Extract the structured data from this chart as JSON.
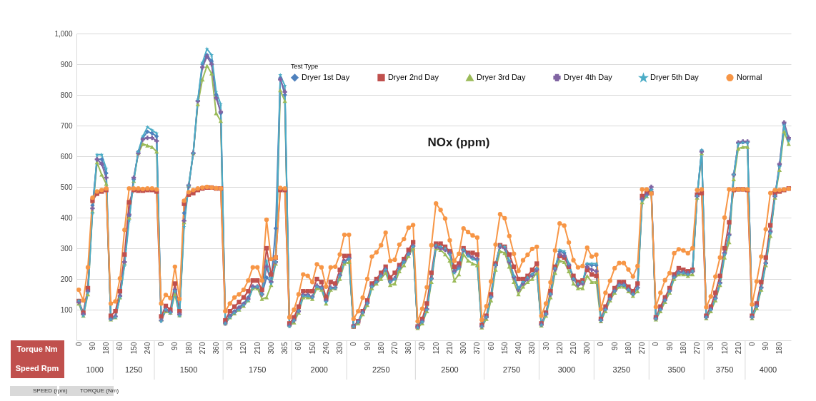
{
  "chart_data": {
    "type": "line",
    "title": "NOx (ppm)",
    "legend_title": "Test Type",
    "legend": "top",
    "grid": "y",
    "ylim": [
      0,
      1000
    ],
    "yticks": [
      100,
      200,
      300,
      400,
      500,
      600,
      700,
      800,
      900,
      {
        "value": 1000,
        "label": "1,000"
      }
    ],
    "categories": [
      "0",
      null,
      null,
      "90",
      null,
      null,
      "180",
      null,
      null,
      "60",
      null,
      null,
      "150",
      null,
      null,
      "240",
      null,
      null,
      "0",
      null,
      null,
      "90",
      null,
      null,
      "180",
      null,
      null,
      "270",
      null,
      null,
      "360",
      null,
      null,
      "30",
      null,
      null,
      "120",
      null,
      null,
      "210",
      null,
      null,
      "300",
      null,
      null,
      "365",
      null,
      null,
      "60",
      null,
      null,
      "150",
      null,
      null,
      "240",
      null,
      null,
      "330",
      null,
      null,
      "0",
      null,
      null,
      "90",
      null,
      null,
      "180",
      null,
      null,
      "270",
      null,
      null,
      "360",
      null,
      null,
      "30",
      null,
      null,
      "120",
      null,
      null,
      "210",
      null,
      null,
      "300",
      null,
      null,
      "370",
      null,
      null,
      "60",
      null,
      null,
      "150",
      null,
      null,
      "240",
      null,
      null,
      "330",
      null,
      null,
      "30",
      null,
      null,
      "120",
      null,
      null,
      "210",
      null,
      null,
      "300",
      null,
      null,
      "0",
      null,
      null,
      "90",
      null,
      null,
      "180",
      null,
      null,
      "270",
      null,
      null,
      "0",
      null,
      null,
      "90",
      null,
      null,
      "180",
      null,
      null,
      "270",
      null,
      null,
      "30",
      null,
      null,
      "120",
      null,
      null,
      "210",
      null,
      null,
      "0",
      null,
      null,
      "90",
      null,
      null,
      "180",
      null,
      null
    ],
    "series": [
      {
        "name": "Dryer 1st Day",
        "color": "#4f81bd",
        "marker": "diamond",
        "values": [
          125,
          88,
          165,
          440,
          590,
          590,
          545,
          70,
          78,
          145,
          255,
          405,
          525,
          615,
          660,
          680,
          675,
          665,
          65,
          100,
          90,
          160,
          82,
          415,
          500,
          610,
          780,
          900,
          930,
          910,
          800,
          740,
          58,
          80,
          95,
          108,
          120,
          140,
          175,
          175,
          150,
          205,
          190,
          365,
          855,
          800,
          48,
          66,
          96,
          146,
          146,
          141,
          176,
          171,
          128,
          171,
          171,
          211,
          256,
          266,
          46,
          61,
          91,
          121,
          176,
          191,
          211,
          231,
          191,
          201,
          236,
          256,
          281,
          306,
          43,
          61,
          101,
          201,
          308,
          303,
          298,
          282,
          222,
          237,
          296,
          277,
          267,
          262,
          46,
          76,
          141,
          246,
          308,
          303,
          258,
          208,
          168,
          188,
          203,
          214,
          233,
          51,
          86,
          151,
          236,
          290,
          285,
          248,
          200,
          183,
          188,
          248,
          245,
          245,
          66,
          101,
          136,
          161,
          181,
          181,
          166,
          151,
          171,
          460,
          475,
          492,
          71,
          101,
          131,
          161,
          206,
          221,
          221,
          216,
          224,
          472,
          618,
          76,
          101,
          136,
          186,
          282,
          342,
          540,
          642,
          646,
          646,
          76,
          111,
          171,
          251,
          352,
          470,
          570,
          705,
          655
        ]
      },
      {
        "name": "Dryer 2nd Day",
        "color": "#c0504d",
        "marker": "square",
        "values": [
          128,
          90,
          170,
          455,
          478,
          485,
          490,
          80,
          95,
          160,
          280,
          450,
          490,
          488,
          488,
          490,
          490,
          485,
          78,
          112,
          100,
          185,
          95,
          445,
          475,
          480,
          490,
          495,
          498,
          498,
          495,
          495,
          65,
          95,
          110,
          125,
          140,
          160,
          195,
          195,
          165,
          300,
          215,
          270,
          490,
          490,
          55,
          75,
          110,
          160,
          160,
          160,
          200,
          190,
          140,
          190,
          185,
          230,
          275,
          275,
          45,
          62,
          95,
          130,
          185,
          200,
          220,
          240,
          205,
          220,
          245,
          265,
          295,
          320,
          45,
          70,
          120,
          220,
          315,
          315,
          305,
          290,
          240,
          250,
          300,
          285,
          285,
          280,
          50,
          80,
          150,
          250,
          310,
          305,
          280,
          240,
          200,
          200,
          210,
          230,
          250,
          55,
          90,
          160,
          240,
          275,
          270,
          240,
          210,
          190,
          195,
          230,
          215,
          210,
          70,
          110,
          145,
          170,
          190,
          190,
          175,
          160,
          185,
          470,
          480,
          480,
          75,
          110,
          140,
          170,
          215,
          235,
          230,
          225,
          230,
          475,
          480,
          80,
          110,
          155,
          210,
          300,
          385,
          490,
          492,
          492,
          490,
          80,
          120,
          190,
          270,
          375,
          480,
          485,
          490,
          495
        ]
      },
      {
        "name": "Dryer 3rd Day",
        "color": "#9bbb59",
        "marker": "triangle",
        "values": [
          120,
          80,
          150,
          420,
          580,
          540,
          510,
          68,
          75,
          140,
          250,
          400,
          520,
          610,
          640,
          635,
          630,
          615,
          68,
          95,
          90,
          150,
          82,
          385,
          505,
          610,
          770,
          850,
          895,
          870,
          740,
          715,
          55,
          75,
          88,
          100,
          112,
          130,
          170,
          170,
          135,
          140,
          180,
          250,
          815,
          780,
          50,
          58,
          90,
          140,
          140,
          135,
          170,
          165,
          120,
          165,
          170,
          200,
          250,
          255,
          45,
          55,
          85,
          115,
          170,
          185,
          200,
          220,
          180,
          185,
          225,
          245,
          275,
          300,
          40,
          55,
          95,
          190,
          300,
          295,
          280,
          260,
          195,
          215,
          280,
          260,
          250,
          245,
          42,
          70,
          130,
          230,
          290,
          285,
          240,
          190,
          150,
          175,
          190,
          200,
          220,
          48,
          80,
          140,
          220,
          260,
          255,
          225,
          185,
          170,
          170,
          210,
          190,
          190,
          62,
          95,
          130,
          155,
          175,
          175,
          160,
          145,
          160,
          450,
          470,
          485,
          68,
          95,
          125,
          155,
          200,
          215,
          215,
          210,
          215,
          465,
          610,
          72,
          95,
          130,
          180,
          270,
          320,
          525,
          625,
          630,
          630,
          72,
          105,
          165,
          245,
          340,
          465,
          555,
          680,
          640
        ]
      },
      {
        "name": "Dryer 4th Day",
        "color": "#8064a2",
        "marker": "cross",
        "values": [
          125,
          85,
          160,
          430,
          590,
          575,
          530,
          70,
          78,
          145,
          255,
          410,
          530,
          610,
          655,
          660,
          660,
          650,
          65,
          100,
          92,
          165,
          85,
          390,
          505,
          610,
          780,
          890,
          925,
          900,
          790,
          745,
          55,
          78,
          92,
          105,
          118,
          135,
          175,
          175,
          150,
          240,
          190,
          255,
          850,
          810,
          48,
          65,
          95,
          148,
          148,
          142,
          178,
          172,
          130,
          172,
          172,
          212,
          258,
          268,
          46,
          62,
          92,
          122,
          178,
          192,
          212,
          232,
          192,
          202,
          238,
          258,
          282,
          308,
          44,
          62,
          102,
          202,
          305,
          300,
          295,
          285,
          225,
          240,
          295,
          280,
          270,
          265,
          46,
          76,
          142,
          245,
          305,
          300,
          255,
          205,
          165,
          185,
          200,
          212,
          230,
          52,
          86,
          150,
          232,
          280,
          275,
          245,
          200,
          180,
          185,
          240,
          230,
          225,
          66,
          102,
          136,
          162,
          182,
          182,
          166,
          152,
          172,
          460,
          475,
          500,
          72,
          102,
          132,
          162,
          208,
          222,
          222,
          218,
          225,
          470,
          615,
          76,
          102,
          138,
          188,
          285,
          345,
          540,
          645,
          648,
          648,
          76,
          112,
          172,
          252,
          355,
          470,
          575,
          710,
          660
        ]
      },
      {
        "name": "Dryer 5th Day",
        "color": "#4bacc6",
        "marker": "star",
        "values": [
          130,
          80,
          155,
          415,
          605,
          605,
          560,
          68,
          75,
          140,
          245,
          390,
          520,
          615,
          665,
          695,
          685,
          675,
          62,
          100,
          90,
          160,
          80,
          370,
          505,
          610,
          785,
          905,
          950,
          930,
          810,
          770,
          55,
          75,
          90,
          100,
          115,
          130,
          170,
          175,
          150,
          260,
          185,
          255,
          865,
          830,
          45,
          65,
          95,
          145,
          145,
          140,
          175,
          170,
          125,
          170,
          170,
          210,
          255,
          265,
          45,
          60,
          90,
          120,
          175,
          190,
          210,
          230,
          190,
          200,
          235,
          255,
          280,
          305,
          42,
          60,
          100,
          200,
          310,
          305,
          300,
          280,
          220,
          235,
          295,
          275,
          265,
          260,
          45,
          75,
          140,
          245,
          310,
          305,
          260,
          210,
          170,
          190,
          205,
          215,
          235,
          50,
          85,
          150,
          235,
          295,
          290,
          250,
          200,
          185,
          190,
          250,
          250,
          250,
          65,
          100,
          135,
          160,
          180,
          180,
          165,
          150,
          170,
          455,
          470,
          490,
          70,
          100,
          130,
          160,
          205,
          220,
          220,
          215,
          225,
          470,
          620,
          75,
          100,
          135,
          185,
          280,
          340,
          540,
          640,
          645,
          645,
          75,
          110,
          170,
          250,
          350,
          470,
          565,
          700,
          650
        ]
      },
      {
        "name": "Normal",
        "color": "#f79646",
        "marker": "circle",
        "values": [
          165,
          130,
          238,
          465,
          485,
          490,
          495,
          120,
          127,
          202,
          360,
          495,
          495,
          495,
          493,
          495,
          495,
          492,
          120,
          148,
          138,
          240,
          135,
          455,
          483,
          490,
          495,
          498,
          500,
          498,
          496,
          495,
          95,
          120,
          140,
          150,
          165,
          195,
          238,
          238,
          195,
          393,
          265,
          270,
          497,
          495,
          75,
          100,
          150,
          215,
          210,
          190,
          248,
          238,
          175,
          238,
          240,
          280,
          344,
          344,
          70,
          95,
          139,
          200,
          273,
          287,
          310,
          351,
          259,
          263,
          312,
          330,
          367,
          376,
          62,
          103,
          173,
          310,
          446,
          425,
          397,
          326,
          259,
          282,
          365,
          353,
          342,
          335,
          67,
          111,
          192,
          312,
          411,
          398,
          340,
          282,
          226,
          261,
          279,
          298,
          305,
          80,
          120,
          189,
          293,
          381,
          374,
          319,
          261,
          238,
          242,
          302,
          273,
          279,
          102,
          155,
          194,
          235,
          252,
          252,
          231,
          208,
          242,
          492,
          492,
          478,
          109,
          155,
          196,
          219,
          284,
          297,
          293,
          284,
          300,
          490,
          492,
          108,
          143,
          208,
          270,
          400,
          492,
          492,
          492,
          492,
          492,
          117,
          192,
          273,
          362,
          480,
          490,
          490,
          492,
          494
        ]
      }
    ],
    "annotations": [
      "Torque Nm",
      "Speed Rpm",
      "SPEED (rpm)",
      "TORQUE (Nm)",
      "1000",
      "1250",
      "1500",
      "1750",
      "2000",
      "2250",
      "2500",
      "2750",
      "3000",
      "3250",
      "3500",
      "3750",
      "4000"
    ]
  }
}
